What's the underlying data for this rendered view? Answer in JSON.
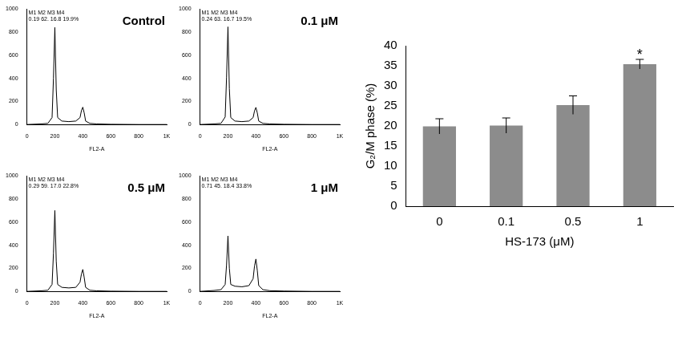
{
  "chart_data": [
    {
      "type": "line",
      "title": "Control",
      "annotations": [
        "M1 M2 M3 M4",
        "0.19 62. 16.8 19.9%"
      ],
      "x_label": "FL2-A",
      "x": [
        0,
        100,
        150,
        180,
        190,
        200,
        210,
        220,
        250,
        300,
        350,
        380,
        390,
        400,
        410,
        420,
        450,
        500,
        600,
        800,
        1000
      ],
      "values": [
        0,
        5,
        10,
        60,
        400,
        840,
        300,
        60,
        30,
        25,
        30,
        60,
        120,
        150,
        100,
        30,
        10,
        5,
        2,
        0,
        0
      ],
      "color": "#000000",
      "xlim": [
        0,
        1000
      ],
      "xticks": [
        0,
        200,
        400,
        600,
        800,
        {
          "value": 1000,
          "label": "1K"
        }
      ],
      "ylim": [
        0,
        1000
      ],
      "yticks": [
        0,
        200,
        400,
        600,
        800,
        1000
      ],
      "grid": false
    },
    {
      "type": "line",
      "title": "0.1 μM",
      "annotations": [
        "M1 M2 M3 M4",
        "0.24 63. 16.7 19.5%"
      ],
      "x_label": "FL2-A",
      "x": [
        0,
        100,
        150,
        180,
        190,
        200,
        210,
        220,
        250,
        300,
        350,
        380,
        390,
        400,
        410,
        420,
        450,
        500,
        600,
        800,
        1000
      ],
      "values": [
        0,
        5,
        10,
        65,
        410,
        845,
        310,
        60,
        30,
        25,
        30,
        60,
        118,
        148,
        100,
        30,
        10,
        5,
        2,
        0,
        0
      ],
      "color": "#000000",
      "xlim": [
        0,
        1000
      ],
      "xticks": [
        0,
        200,
        400,
        600,
        800,
        {
          "value": 1000,
          "label": "1K"
        }
      ],
      "ylim": [
        0,
        1000
      ],
      "yticks": [
        0,
        200,
        400,
        600,
        800,
        1000
      ],
      "grid": false
    },
    {
      "type": "line",
      "title": "0.5 μM",
      "annotations": [
        "M1 M2 M3 M4",
        "0.29 59. 17.0 22.8%"
      ],
      "x_label": "FL2-A",
      "x": [
        0,
        100,
        150,
        180,
        190,
        200,
        210,
        220,
        250,
        300,
        350,
        380,
        390,
        400,
        410,
        420,
        450,
        500,
        600,
        800,
        1000
      ],
      "values": [
        0,
        5,
        10,
        60,
        330,
        700,
        260,
        60,
        35,
        30,
        35,
        80,
        150,
        190,
        120,
        35,
        10,
        5,
        2,
        0,
        0
      ],
      "color": "#000000",
      "xlim": [
        0,
        1000
      ],
      "xticks": [
        0,
        200,
        400,
        600,
        800,
        {
          "value": 1000,
          "label": "1K"
        }
      ],
      "ylim": [
        0,
        1000
      ],
      "yticks": [
        0,
        200,
        400,
        600,
        800,
        1000
      ],
      "grid": false
    },
    {
      "type": "line",
      "title": "1 μM",
      "annotations": [
        "M1 M2 M3 M4",
        "0.71 45. 18.4 33.8%"
      ],
      "x_label": "FL2-A",
      "x": [
        0,
        100,
        150,
        180,
        190,
        200,
        210,
        220,
        250,
        300,
        350,
        380,
        390,
        400,
        410,
        420,
        450,
        500,
        600,
        800,
        1000
      ],
      "values": [
        0,
        8,
        15,
        60,
        230,
        480,
        200,
        60,
        45,
        40,
        50,
        110,
        220,
        280,
        180,
        50,
        15,
        6,
        3,
        0,
        0
      ],
      "color": "#000000",
      "xlim": [
        0,
        1000
      ],
      "xticks": [
        0,
        200,
        400,
        600,
        800,
        {
          "value": 1000,
          "label": "1K"
        }
      ],
      "ylim": [
        0,
        1000
      ],
      "yticks": [
        0,
        200,
        400,
        600,
        800,
        1000
      ],
      "grid": false
    },
    {
      "type": "bar",
      "categories": [
        "0",
        "0.1",
        "0.5",
        "1"
      ],
      "values": [
        19.9,
        20.1,
        25.2,
        35.4
      ],
      "errors": [
        1.9,
        1.9,
        2.3,
        1.2
      ],
      "color": "#8c8c8c",
      "x_label": "HS-173 (μM)",
      "y_label": "G₂/M phase (%)",
      "ylim": [
        0,
        40
      ],
      "yticks": [
        0,
        5,
        10,
        15,
        20,
        25,
        30,
        35,
        40
      ],
      "grid": false,
      "annotations": [
        {
          "category": "1",
          "text": "*"
        }
      ]
    }
  ]
}
